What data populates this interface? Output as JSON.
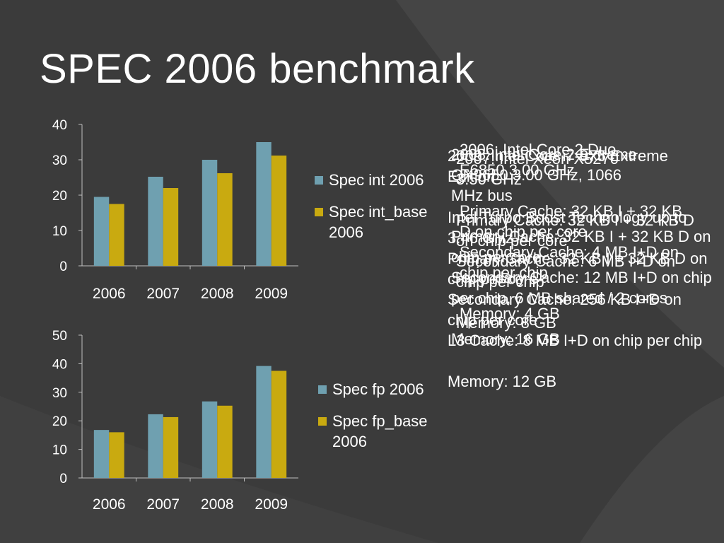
{
  "slide": {
    "title": "SPEC 2006 benchmark",
    "colors": {
      "background": "#3b3b3b",
      "text": "#ffffff",
      "series1": "#6fa0b0",
      "series2": "#c9aa10",
      "axis": "#bfbfbf"
    }
  },
  "chart_data": [
    {
      "type": "bar",
      "title": "",
      "categories": [
        "2006",
        "2007",
        "2008",
        "2009"
      ],
      "series": [
        {
          "name": "Spec int 2006",
          "values": [
            19.5,
            25.2,
            30.0,
            35.0
          ]
        },
        {
          "name": "Spec int_base 2006",
          "values": [
            17.5,
            22.0,
            26.2,
            31.2
          ]
        }
      ],
      "xlabel": "",
      "ylabel": "",
      "ylim": [
        0,
        40
      ],
      "yticks": [
        "0",
        "10",
        "20",
        "30",
        "40"
      ],
      "grid": false,
      "legend": "right"
    },
    {
      "type": "bar",
      "title": "",
      "categories": [
        "2006",
        "2007",
        "2008",
        "2009"
      ],
      "series": [
        {
          "name": "Spec fp 2006",
          "values": [
            16.8,
            22.3,
            26.8,
            39.2
          ]
        },
        {
          "name": "Spec fp_base 2006",
          "values": [
            16.0,
            21.3,
            25.3,
            37.5
          ]
        }
      ],
      "xlabel": "",
      "ylabel": "",
      "ylim": [
        0,
        50
      ],
      "yticks": [
        "0",
        "10",
        "20",
        "30",
        "40",
        "50"
      ],
      "grid": false,
      "legend": "right"
    }
  ],
  "spec_blocks": [
    {
      "lines": [
        "2006: Intel Core 2 Duo",
        "E6850 3.00 GHz",
        "",
        "Primary Cache: 32 KB I + 32 KB D on chip per core",
        "Secondary Cache: 4 MB I+D on chip per chip",
        "",
        "Memory: 4 GB"
      ]
    },
    {
      "lines": [
        "2007: Intel Xeon X5270",
        "3.50 GHz",
        "",
        "Primary Cache: 32 KB I + 32 KB D on chip per core",
        "Secondary Cache: 6 MB I+D on chip per chip",
        "",
        "Memory: 8 GB"
      ]
    },
    {
      "lines": [
        "2008: Intel Core 2 Extreme",
        "QX9650 3.00 GHz, 1066",
        "MHz bus",
        "",
        "Primary Cache: 32 KB I + 32 KB D on chip per core",
        "Secondary Cache: 12 MB I+D on chip per chip, 6 MB shared / 2 cores",
        "",
        "Memory: 16 GB"
      ]
    },
    {
      "lines": [
        "2009: Intel Core i7-975 Extreme",
        "Edition",
        "",
        "Intel Turbo Boost Technology up to 3.46 GHz",
        "Primary Cache: 32 KB I + 32 KB D on chip per core",
        "Secondary Cache: 256 KB I+D on chip per core",
        "L3 Cache: 8 MB I+D on chip per chip",
        "",
        "Memory: 12 GB"
      ]
    }
  ]
}
